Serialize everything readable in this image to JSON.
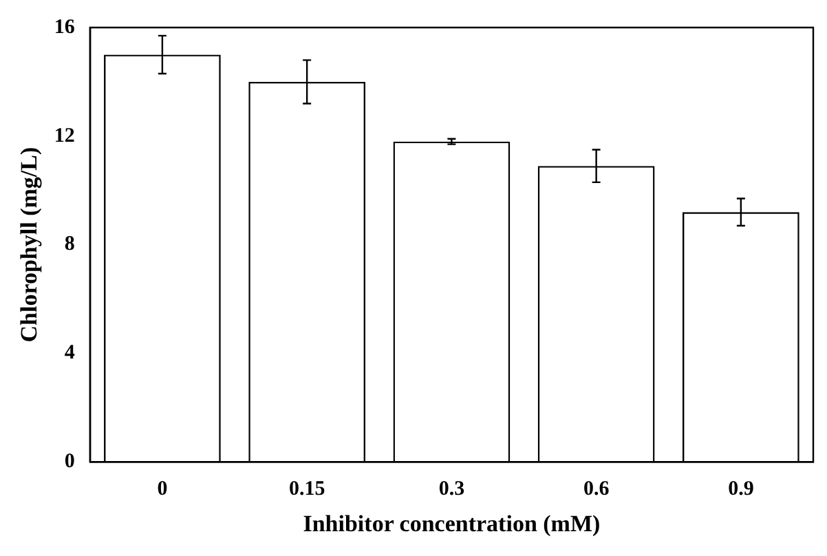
{
  "chart_data": {
    "type": "bar",
    "xlabel": "Inhibitor concentration (mM)",
    "ylabel": "Chlorophyll (mg/L)",
    "categories": [
      "0",
      "0.15",
      "0.3",
      "0.6",
      "0.9"
    ],
    "values": [
      15.0,
      14.0,
      11.8,
      10.9,
      9.2
    ],
    "errors": [
      0.7,
      0.8,
      0.1,
      0.6,
      0.5
    ],
    "color": "#000000",
    "ylim": [
      0,
      16
    ],
    "yticks": [
      0,
      4,
      8,
      12,
      16
    ],
    "grid": false,
    "legend": false
  }
}
